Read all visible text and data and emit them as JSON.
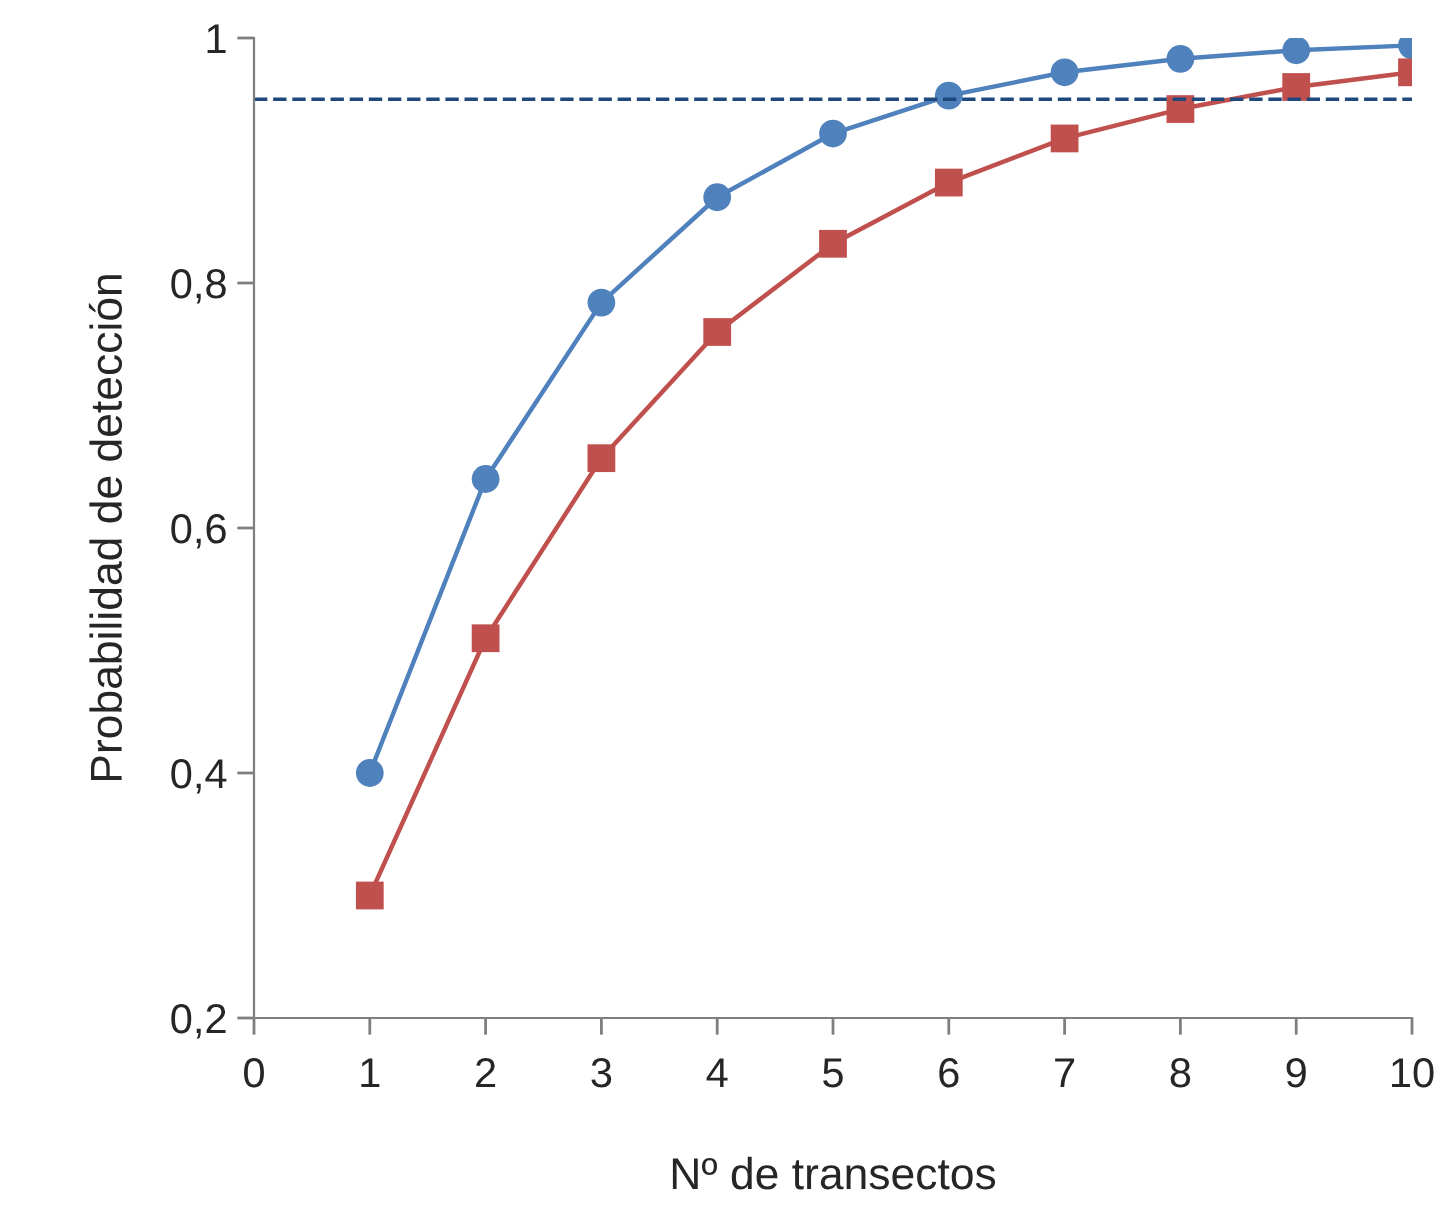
{
  "chart_data": {
    "type": "line",
    "xlabel": "Nº de transectos",
    "ylabel": "Probabilidad de detección",
    "x": [
      1,
      2,
      3,
      4,
      5,
      6,
      7,
      8,
      9,
      10
    ],
    "series": [
      {
        "color": "#4f81bd",
        "marker": "circle",
        "values": [
          0.4,
          0.64,
          0.784,
          0.87,
          0.922,
          0.953,
          0.972,
          0.983,
          0.99,
          0.994
        ]
      },
      {
        "color": "#c0504d",
        "marker": "square",
        "values": [
          0.3,
          0.51,
          0.657,
          0.76,
          0.832,
          0.882,
          0.918,
          0.942,
          0.96,
          0.972
        ]
      }
    ],
    "xlim": [
      0,
      10
    ],
    "xticks": [
      0,
      1,
      2,
      3,
      4,
      5,
      6,
      7,
      8,
      9,
      10
    ],
    "ylim": [
      0.2,
      1
    ],
    "yticks": [
      {
        "value": 0.2,
        "label": "0,2"
      },
      {
        "value": 0.4,
        "label": "0,4"
      },
      {
        "value": 0.6,
        "label": "0,6"
      },
      {
        "value": 0.8,
        "label": "0,8"
      },
      {
        "value": 1,
        "label": "1"
      }
    ],
    "ref_lines": [
      {
        "axis": "y",
        "value": 0.95,
        "label": null,
        "color": "#1f497d",
        "line_style": "dashed"
      }
    ],
    "grid": false,
    "legend": false,
    "line_style": "solid"
  }
}
